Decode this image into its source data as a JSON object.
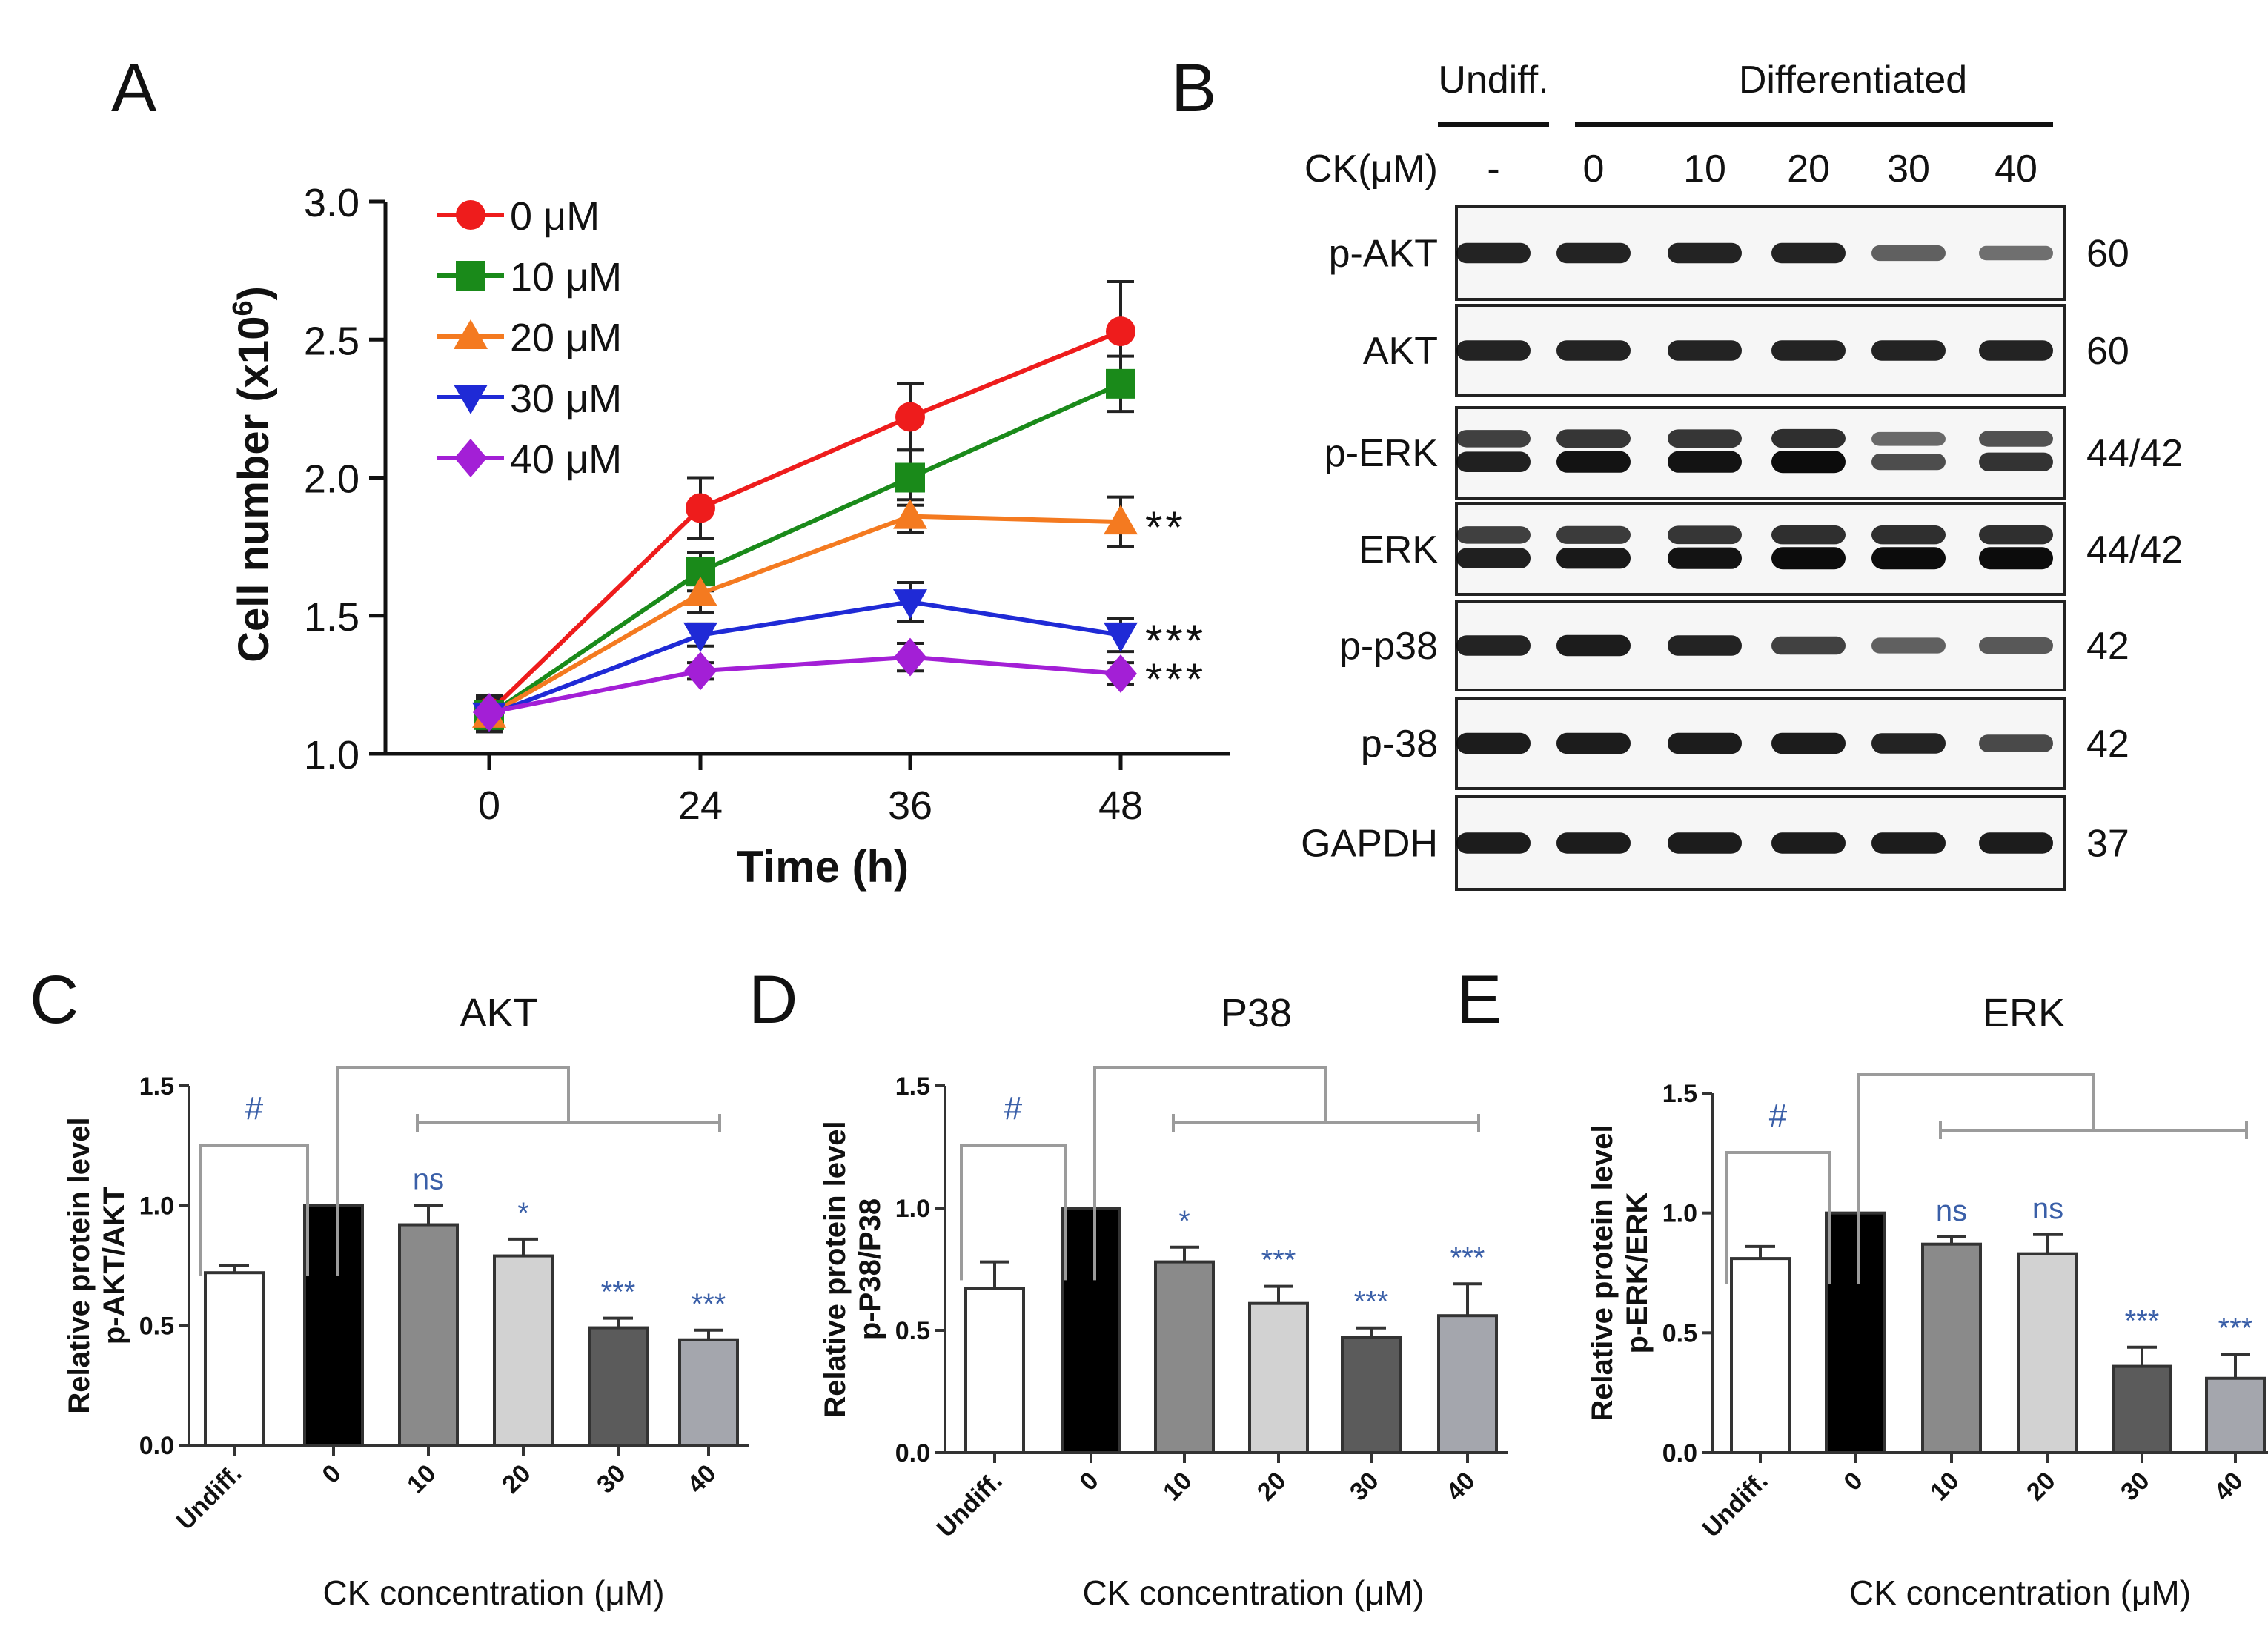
{
  "panels": {
    "A": "A",
    "B": "B",
    "C": "C",
    "D": "D",
    "E": "E"
  },
  "chart_data": [
    {
      "type": "line",
      "panel": "A",
      "title": "",
      "xlabel": "Time (h)",
      "ylabel_main": "Cell number (x10",
      "ylabel_exp": "6",
      "ylabel_close": ")",
      "x": [
        0,
        24,
        36,
        48
      ],
      "x_tick_labels": [
        "0",
        "24",
        "36",
        "48"
      ],
      "ylim": [
        1.0,
        3.0
      ],
      "y_ticks": [
        "1.0",
        "1.5",
        "2.0",
        "2.5",
        "3.0"
      ],
      "series": [
        {
          "name": "0 μM",
          "color": "#ee1c1c",
          "marker": "circle",
          "values": [
            1.15,
            1.89,
            2.22,
            2.53
          ],
          "errors": [
            0.06,
            0.11,
            0.12,
            0.18
          ],
          "sig": ""
        },
        {
          "name": "10 μM",
          "color": "#1a8a1a",
          "marker": "square",
          "values": [
            1.14,
            1.66,
            2.0,
            2.34
          ],
          "errors": [
            0.06,
            0.07,
            0.1,
            0.1
          ],
          "sig": ""
        },
        {
          "name": "20 μM",
          "color": "#f47a20",
          "marker": "triangle-up",
          "values": [
            1.14,
            1.58,
            1.86,
            1.84
          ],
          "errors": [
            0.06,
            0.07,
            0.06,
            0.09
          ],
          "sig": "**"
        },
        {
          "name": "30 μM",
          "color": "#1f2ad6",
          "marker": "triangle-down",
          "values": [
            1.14,
            1.43,
            1.55,
            1.43
          ],
          "errors": [
            0.06,
            0.04,
            0.07,
            0.06
          ],
          "sig": "***"
        },
        {
          "name": "40 μM",
          "color": "#a31fd6",
          "marker": "diamond",
          "values": [
            1.15,
            1.3,
            1.35,
            1.29
          ],
          "errors": [
            0.06,
            0.03,
            0.05,
            0.04
          ],
          "sig": "***"
        }
      ]
    },
    {
      "type": "bar",
      "panel": "C",
      "title": "AKT",
      "ylabel1": "Relative protein level",
      "ylabel2": "p-AKT/AKT",
      "xlabel": "CK concentration  (μM)",
      "categories": [
        "Undiff.",
        "0",
        "10",
        "20",
        "30",
        "40"
      ],
      "values": [
        0.72,
        1.0,
        0.92,
        0.79,
        0.49,
        0.44
      ],
      "errors": [
        0.03,
        0,
        0.08,
        0.07,
        0.04,
        0.04
      ],
      "sig": [
        "#",
        "",
        "ns",
        "*",
        "***",
        "***"
      ],
      "ylim": [
        0,
        1.5
      ],
      "y_ticks": [
        "0.0",
        "0.5",
        "1.0",
        "1.5"
      ],
      "colors": [
        "#ffffff",
        "#000000",
        "#8a8a8a",
        "#d2d2d2",
        "#5b5b5b",
        "#a4a6ad"
      ]
    },
    {
      "type": "bar",
      "panel": "D",
      "title": "P38",
      "ylabel1": "Relative protein level",
      "ylabel2": "p-P38/P38",
      "xlabel": "CK concentration  (μM)",
      "categories": [
        "Undiff.",
        "0",
        "10",
        "20",
        "30",
        "40"
      ],
      "values": [
        0.67,
        1.0,
        0.78,
        0.61,
        0.47,
        0.56
      ],
      "errors": [
        0.11,
        0,
        0.06,
        0.07,
        0.04,
        0.13
      ],
      "sig": [
        "#",
        "",
        "*",
        "***",
        "***",
        "***"
      ],
      "ylim": [
        0,
        1.5
      ],
      "y_ticks": [
        "0.0",
        "0.5",
        "1.0",
        "1.5"
      ],
      "colors": [
        "#ffffff",
        "#000000",
        "#8a8a8a",
        "#d2d2d2",
        "#5b5b5b",
        "#a4a6ad"
      ]
    },
    {
      "type": "bar",
      "panel": "E",
      "title": "ERK",
      "ylabel1": "Relative protein level",
      "ylabel2": "p-ERK/ERK",
      "xlabel": "CK concentration  (μM)",
      "categories": [
        "Undiff.",
        "0",
        "10",
        "20",
        "30",
        "40"
      ],
      "values": [
        0.81,
        1.0,
        0.87,
        0.83,
        0.36,
        0.31
      ],
      "errors": [
        0.05,
        0,
        0.03,
        0.08,
        0.08,
        0.1
      ],
      "sig": [
        "#",
        "",
        "ns",
        "ns",
        "***",
        "***"
      ],
      "ylim": [
        0,
        1.5
      ],
      "y_ticks": [
        "0.0",
        "0.5",
        "1.0",
        "1.5"
      ],
      "colors": [
        "#ffffff",
        "#000000",
        "#8a8a8a",
        "#d2d2d2",
        "#5b5b5b",
        "#a4a6ad"
      ]
    }
  ],
  "blot": {
    "group_undiff": "Undiff.",
    "group_diff": "Differentiated",
    "ck_label": "CK(μM)",
    "lanes": [
      "-",
      "0",
      "10",
      "20",
      "30",
      "40"
    ],
    "rows": [
      {
        "label": "p-AKT",
        "kda": "60",
        "intensity": [
          0.85,
          0.85,
          0.85,
          0.85,
          0.45,
          0.35
        ],
        "double": false
      },
      {
        "label": "AKT",
        "kda": "60",
        "intensity": [
          0.85,
          0.85,
          0.85,
          0.85,
          0.85,
          0.85
        ],
        "double": false
      },
      {
        "label": "p-ERK",
        "kda": "44/42",
        "intensity": [
          0.85,
          0.95,
          0.95,
          1.0,
          0.5,
          0.7
        ],
        "double": true
      },
      {
        "label": "ERK",
        "kda": "44/42",
        "intensity": [
          0.85,
          0.9,
          0.95,
          1.0,
          1.0,
          1.0
        ],
        "double": true
      },
      {
        "label": "p-p38",
        "kda": "42",
        "intensity": [
          0.85,
          0.9,
          0.85,
          0.65,
          0.45,
          0.5
        ],
        "double": false
      },
      {
        "label": "p-38",
        "kda": "42",
        "intensity": [
          0.9,
          0.9,
          0.9,
          0.9,
          0.85,
          0.6
        ],
        "double": false
      },
      {
        "label": "GAPDH",
        "kda": "37",
        "intensity": [
          0.9,
          0.9,
          0.9,
          0.9,
          0.9,
          0.9
        ],
        "double": false
      }
    ]
  },
  "colors": {
    "sig": "#3a5fa8",
    "bracket": "#9b9b9b"
  }
}
